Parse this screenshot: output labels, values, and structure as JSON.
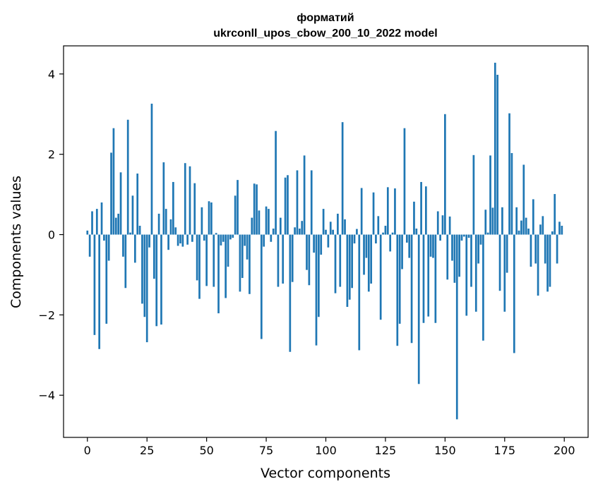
{
  "chart_data": {
    "type": "bar",
    "title_line1": "форматий",
    "title_line2": "ukrconll_upos_cbow_200_10_2022 model",
    "xlabel": "Vector components",
    "ylabel": "Components values",
    "xlim": [
      -10,
      210
    ],
    "ylim": [
      -5.05,
      4.7
    ],
    "xticks": [
      0,
      25,
      50,
      75,
      100,
      125,
      150,
      175,
      200
    ],
    "xtick_labels": [
      "0",
      "25",
      "50",
      "75",
      "100",
      "125",
      "150",
      "175",
      "200"
    ],
    "yticks": [
      -4,
      -2,
      0,
      2,
      4
    ],
    "ytick_labels": [
      "−4",
      "−2",
      "0",
      "2",
      "4"
    ],
    "grid": false,
    "bar_color": "#1f77b4",
    "bar_width": 0.8,
    "values": [
      0.1,
      -0.55,
      0.58,
      -2.5,
      0.64,
      -2.85,
      0.8,
      -0.15,
      -2.22,
      -0.65,
      2.04,
      2.65,
      0.42,
      0.52,
      1.55,
      -0.55,
      -1.33,
      2.86,
      0.05,
      0.97,
      -0.7,
      1.52,
      0.22,
      -1.72,
      -2.05,
      -2.68,
      -0.32,
      3.26,
      -1.1,
      -2.28,
      0.52,
      -2.24,
      1.8,
      0.64,
      -0.38,
      0.38,
      1.31,
      0.18,
      -0.28,
      -0.22,
      -0.3,
      1.78,
      -0.25,
      1.7,
      -0.18,
      1.28,
      -1.14,
      -1.6,
      0.68,
      -0.15,
      -1.28,
      0.83,
      0.8,
      -1.3,
      0.04,
      -1.96,
      -0.27,
      -0.18,
      -1.58,
      -0.8,
      -0.12,
      -0.08,
      0.97,
      1.36,
      -1.42,
      -1.08,
      -0.28,
      -0.62,
      -1.48,
      0.42,
      1.27,
      1.25,
      0.6,
      -2.6,
      -0.3,
      0.7,
      0.64,
      -0.18,
      0.15,
      2.58,
      -1.3,
      0.42,
      -1.22,
      1.42,
      1.48,
      -2.92,
      -1.18,
      0.18,
      1.6,
      0.15,
      0.34,
      1.97,
      -0.88,
      -1.26,
      1.6,
      -0.45,
      -2.76,
      -2.05,
      -0.5,
      0.64,
      0.12,
      -0.32,
      0.32,
      0.12,
      -1.46,
      0.52,
      -1.3,
      2.8,
      0.38,
      -1.8,
      -1.62,
      -1.33,
      -0.22,
      0.14,
      -2.88,
      1.16,
      -1.0,
      -0.58,
      -1.42,
      -1.22,
      1.05,
      -0.22,
      0.46,
      -2.12,
      0.05,
      0.22,
      1.18,
      -0.42,
      0.05,
      1.15,
      -2.77,
      -2.22,
      -0.86,
      2.65,
      -0.2,
      -0.58,
      -2.7,
      0.82,
      0.15,
      -3.72,
      1.31,
      -2.2,
      1.2,
      -2.04,
      -0.55,
      -0.58,
      -2.2,
      0.58,
      -0.15,
      0.48,
      3.0,
      -1.12,
      0.45,
      -0.65,
      -1.2,
      -4.6,
      -1.05,
      -0.15,
      -0.05,
      -2.02,
      -0.08,
      -1.3,
      1.98,
      -1.92,
      -0.72,
      -0.25,
      -2.64,
      0.62,
      0.05,
      1.97,
      0.67,
      4.28,
      3.98,
      -1.4,
      0.68,
      -1.92,
      -0.95,
      3.02,
      2.03,
      -2.95,
      0.68,
      0.1,
      0.35,
      1.74,
      0.42,
      0.15,
      -0.8,
      0.88,
      -0.72,
      -1.52,
      0.25,
      0.46,
      -0.72,
      -1.42,
      -1.3,
      0.08,
      1.01,
      -0.72,
      0.32,
      0.22
    ]
  }
}
